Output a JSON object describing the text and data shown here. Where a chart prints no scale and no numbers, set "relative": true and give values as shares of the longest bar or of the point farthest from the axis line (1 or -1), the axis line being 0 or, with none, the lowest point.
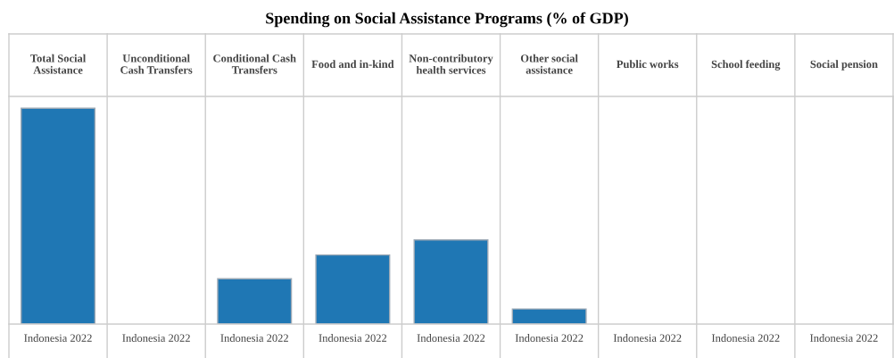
{
  "chart_data": {
    "type": "bar",
    "title": "Spending on Social Assistance Programs (% of GDP)",
    "categories": [
      "Total Social Assistance",
      "Unconditional Cash Transfers",
      "Conditional Cash Transfers",
      "Food and in-kind",
      "Non-contributory health services",
      "Other social assistance",
      "Public works",
      "School feeding",
      "Social pension"
    ],
    "relative": true,
    "series": [
      {
        "name": "Indonesia 2022",
        "color": "#1f77b4",
        "values": [
          1,
          null,
          0.21,
          0.32,
          0.39,
          0.07,
          null,
          null,
          null
        ]
      }
    ]
  }
}
